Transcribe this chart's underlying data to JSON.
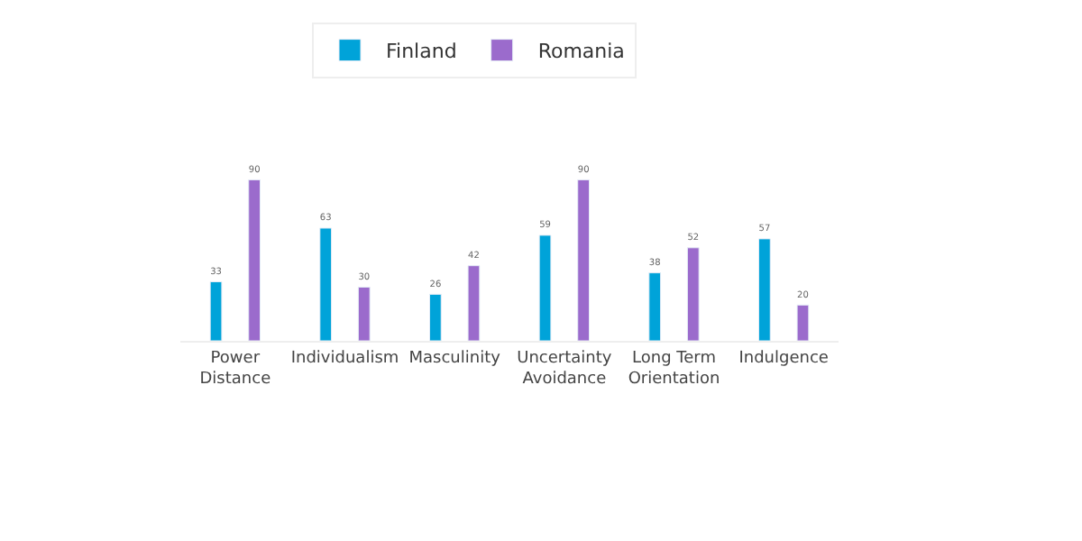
{
  "chart_data": {
    "type": "bar",
    "categories": [
      "Power\nDistance",
      "Individualism",
      "Masculinity",
      "Uncertainty\nAvoidance",
      "Long Term\nOrientation",
      "Indulgence"
    ],
    "series": [
      {
        "name": "Finland",
        "color": "#00a3d9",
        "values": [
          33,
          63,
          26,
          59,
          38,
          57
        ]
      },
      {
        "name": "Romania",
        "color": "#9b6bcc",
        "values": [
          90,
          30,
          42,
          90,
          52,
          20
        ]
      }
    ],
    "tick_labels": "x",
    "data_labels": true,
    "legend": "top"
  }
}
